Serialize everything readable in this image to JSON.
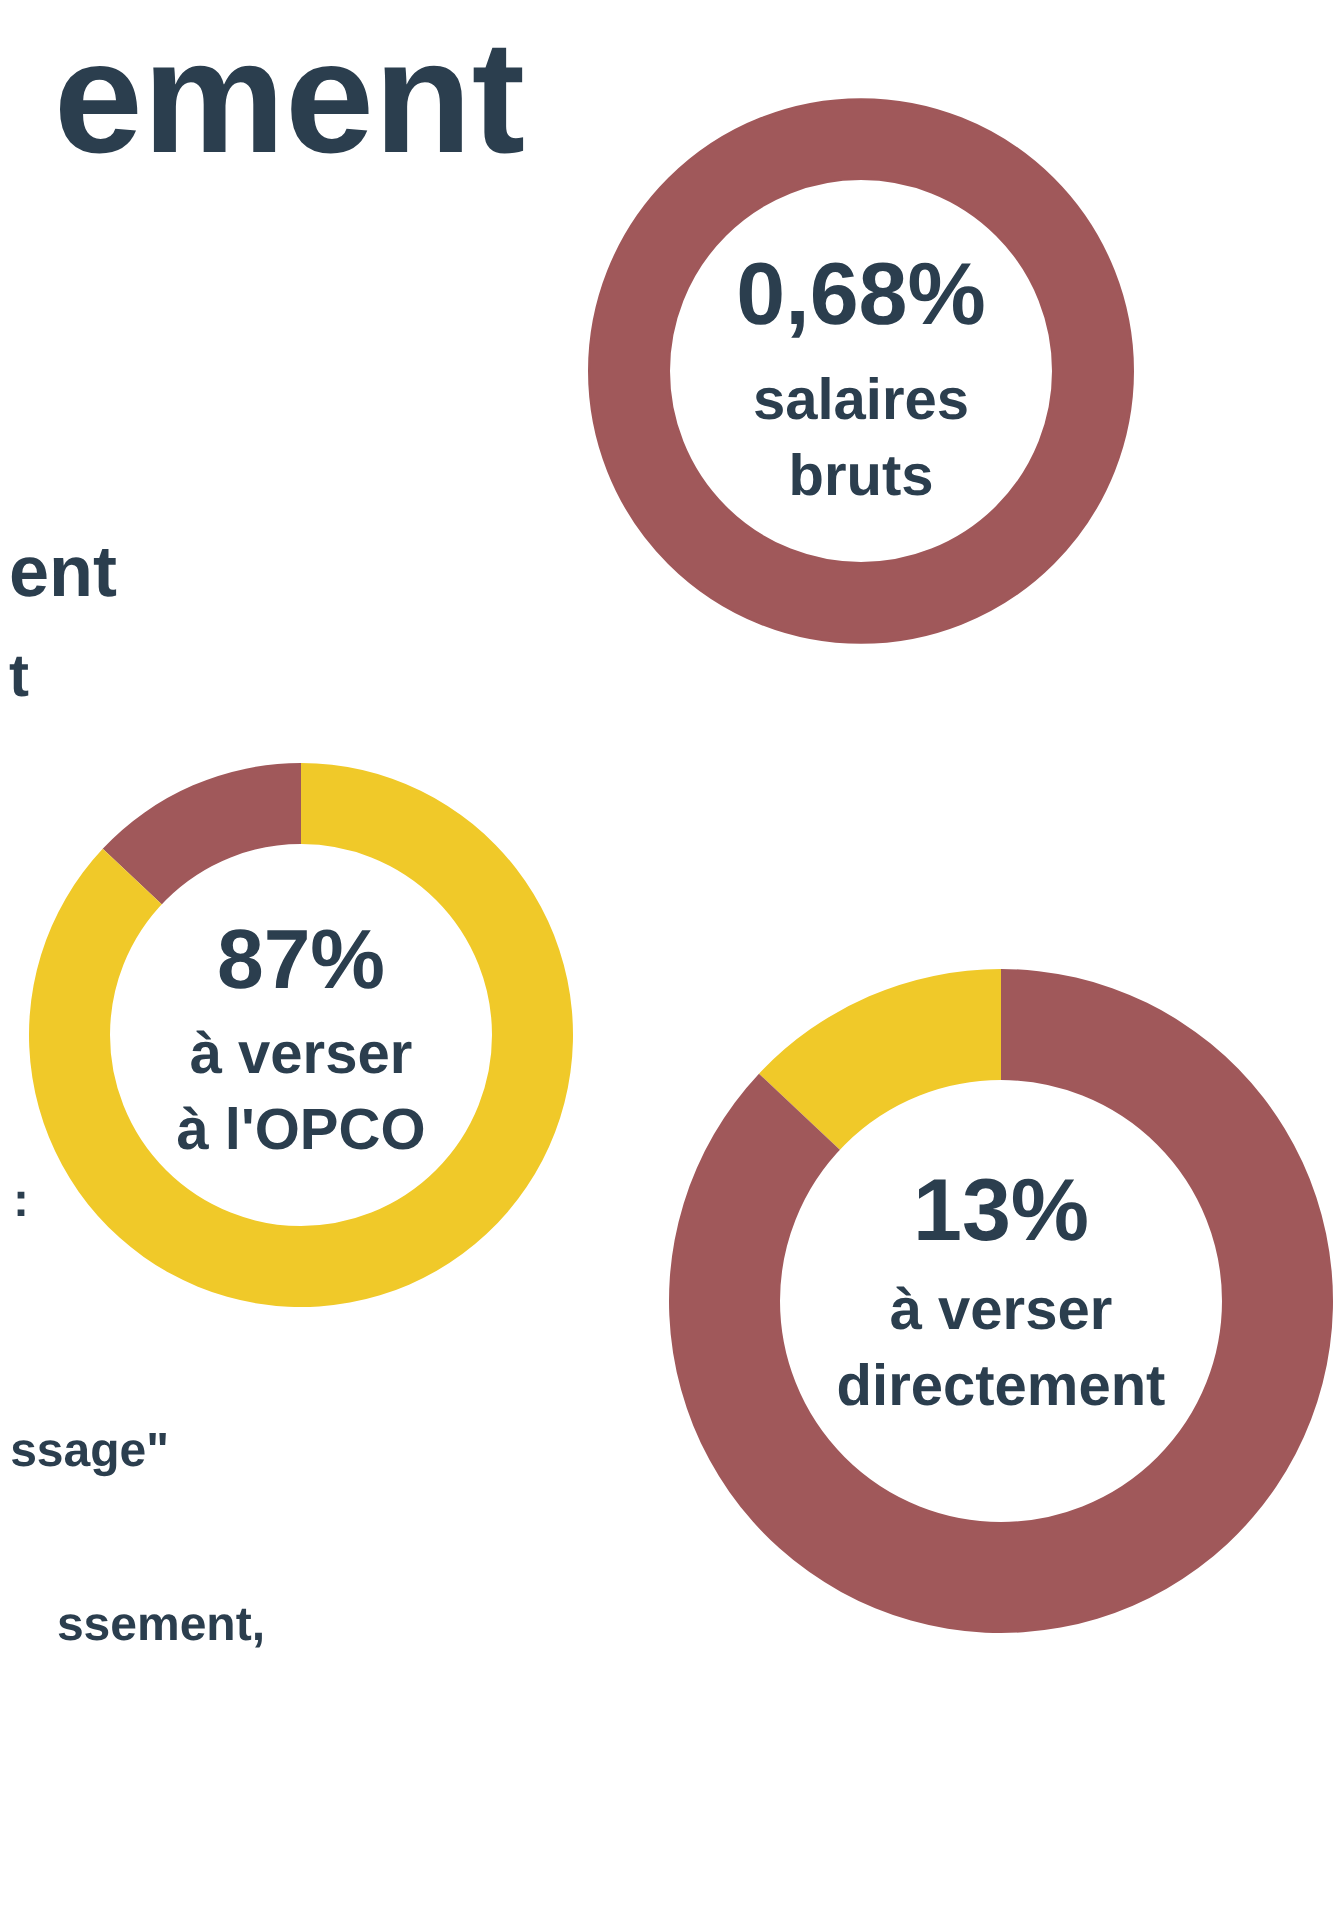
{
  "chart_data": [
    {
      "type": "other",
      "title": "ement",
      "colors": [
        "#a0585a"
      ],
      "annotations": [
        "0,68%",
        "salaires bruts",
        "ent",
        "t",
        ":",
        "ssage\"",
        "ssement,"
      ]
    },
    {
      "type": "donut",
      "categories": [
        null,
        null
      ],
      "values": [
        13,
        87
      ],
      "colors": [
        "#a0585a",
        "#f0c929"
      ],
      "annotations": [
        "87%",
        "à verser",
        "à l'OPCO"
      ]
    },
    {
      "type": "donut",
      "categories": [
        null,
        null
      ],
      "values": [
        13,
        87
      ],
      "colors": [
        "#f0c929",
        "#a0585a"
      ],
      "annotations": [
        "13%",
        "à verser",
        "directement"
      ]
    }
  ]
}
